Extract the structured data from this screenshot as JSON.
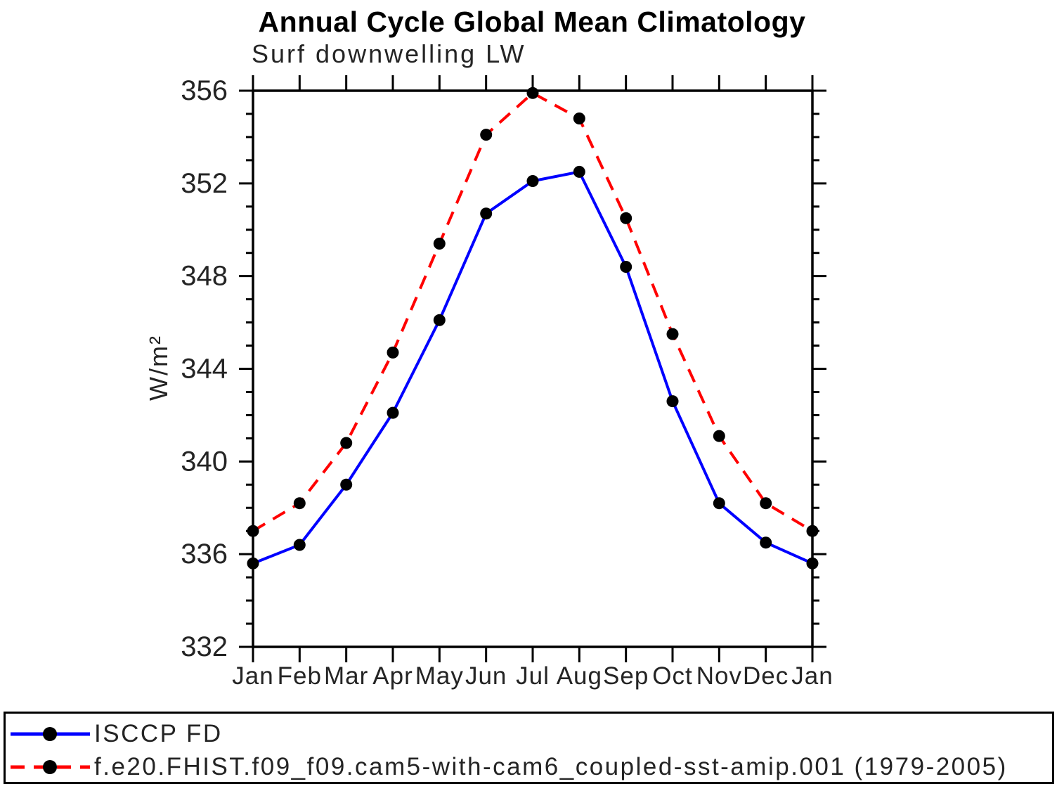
{
  "title": "Annual Cycle Global Mean Climatology",
  "subtitle": "Surf downwelling LW",
  "ylabel": "W/m²",
  "chart_data": {
    "type": "line",
    "title": "Surf downwelling LW",
    "ylabel": "W/m²",
    "categories": [
      "Jan",
      "Feb",
      "Mar",
      "Apr",
      "May",
      "Jun",
      "Jul",
      "Aug",
      "Sep",
      "Oct",
      "Nov",
      "Dec",
      "Jan"
    ],
    "ylim": [
      332,
      356
    ],
    "y_major_step": 4,
    "y_minor_step": 1,
    "grid": false,
    "legend_position": "bottom-left box",
    "axis_color": "#000000",
    "series": [
      {
        "name": "ISCCP FD",
        "color": "#0000ff",
        "line_style": "solid",
        "marker": "filled-circle",
        "marker_color": "#000000",
        "values": [
          335.6,
          336.4,
          339.0,
          342.1,
          346.1,
          350.7,
          352.1,
          352.5,
          348.4,
          342.6,
          338.2,
          336.5,
          335.6
        ]
      },
      {
        "name": "f.e20.FHIST.f09_f09.cam5-with-cam6_coupled-sst-amip.001 (1979-2005)",
        "color": "#ff0000",
        "line_style": "dashed",
        "marker": "filled-circle",
        "marker_color": "#000000",
        "values": [
          337.0,
          338.2,
          340.8,
          344.7,
          349.4,
          354.1,
          355.9,
          354.8,
          350.5,
          345.5,
          341.1,
          338.2,
          337.0
        ]
      }
    ]
  }
}
